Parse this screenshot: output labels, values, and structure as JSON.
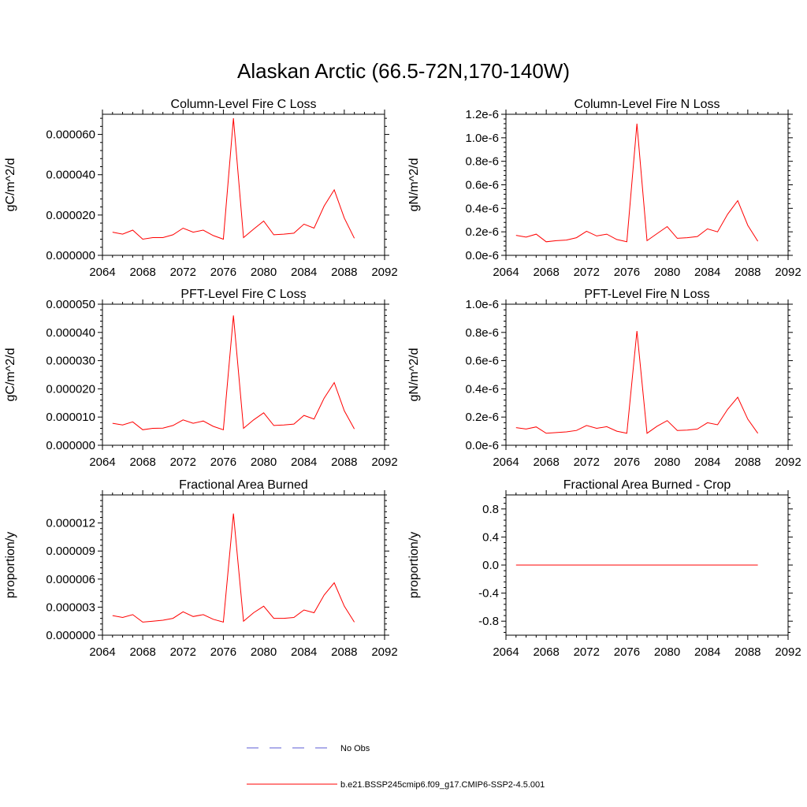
{
  "figure_title": "Alaskan Arctic (66.5-72N,170-140W)",
  "legend": {
    "placement": "bottom-center",
    "entries": [
      {
        "label": "No Obs",
        "color": "#5b5bd6",
        "style": "dashed"
      },
      {
        "label": "b.e21.BSSP245cmip6.f09_g17.CMIP6-SSP2-4.5.001",
        "color": "#ff0000",
        "style": "solid"
      }
    ]
  },
  "chart_data": [
    {
      "type": "line",
      "title": "Column-Level Fire C Loss",
      "xlabel": "",
      "ylabel": "gC/m^2/d",
      "xlim": [
        2064,
        2092
      ],
      "ylim": [
        0,
        7e-05
      ],
      "xticks": [
        "2064",
        "2068",
        "2072",
        "2076",
        "2080",
        "2084",
        "2088",
        "2092"
      ],
      "yticks": [
        {
          "v": 0,
          "t": "0.000000"
        },
        {
          "v": 2e-05,
          "t": "0.000020"
        },
        {
          "v": 4e-05,
          "t": "0.000040"
        },
        {
          "v": 6e-05,
          "t": "0.000060"
        }
      ],
      "grid": false,
      "series": [
        {
          "color": "#ff0000",
          "x": [
            2065,
            2066,
            2067,
            2068,
            2069,
            2070,
            2071,
            2072,
            2073,
            2074,
            2075,
            2076,
            2077,
            2078,
            2079,
            2080,
            2081,
            2082,
            2083,
            2084,
            2085,
            2086,
            2087,
            2088,
            2089
          ],
          "values": [
            1.15e-05,
            1.05e-05,
            1.25e-05,
            8e-06,
            8.8e-06,
            8.8e-06,
            1.02e-05,
            1.35e-05,
            1.15e-05,
            1.25e-05,
            9.8e-06,
            8e-06,
            6.8e-05,
            8.8e-06,
            1.3e-05,
            1.7e-05,
            1.02e-05,
            1.05e-05,
            1.1e-05,
            1.55e-05,
            1.35e-05,
            2.45e-05,
            3.25e-05,
            1.85e-05,
            8.5e-06
          ]
        }
      ]
    },
    {
      "type": "line",
      "title": "Column-Level Fire N Loss",
      "xlabel": "",
      "ylabel": "gN/m^2/d",
      "xlim": [
        2064,
        2092
      ],
      "ylim": [
        0,
        1.2e-06
      ],
      "xticks": [
        "2064",
        "2068",
        "2072",
        "2076",
        "2080",
        "2084",
        "2088",
        "2092"
      ],
      "yticks": [
        {
          "v": 0,
          "t": "0.0e-6"
        },
        {
          "v": 2e-07,
          "t": "0.2e-6"
        },
        {
          "v": 4e-07,
          "t": "0.4e-6"
        },
        {
          "v": 6e-07,
          "t": "0.6e-6"
        },
        {
          "v": 8e-07,
          "t": "0.8e-6"
        },
        {
          "v": 1e-06,
          "t": "1.0e-6"
        },
        {
          "v": 1.2e-06,
          "t": "1.2e-6"
        }
      ],
      "grid": false,
      "series": [
        {
          "color": "#ff0000",
          "x": [
            2065,
            2066,
            2067,
            2068,
            2069,
            2070,
            2071,
            2072,
            2073,
            2074,
            2075,
            2076,
            2077,
            2078,
            2079,
            2080,
            2081,
            2082,
            2083,
            2084,
            2085,
            2086,
            2087,
            2088,
            2089
          ],
          "values": [
            1.7e-07,
            1.55e-07,
            1.8e-07,
            1.15e-07,
            1.25e-07,
            1.3e-07,
            1.5e-07,
            2.05e-07,
            1.65e-07,
            1.8e-07,
            1.35e-07,
            1.15e-07,
            1.12e-06,
            1.25e-07,
            1.85e-07,
            2.45e-07,
            1.45e-07,
            1.5e-07,
            1.6e-07,
            2.25e-07,
            2e-07,
            3.5e-07,
            4.65e-07,
            2.55e-07,
            1.2e-07
          ]
        }
      ]
    },
    {
      "type": "line",
      "title": "PFT-Level Fire C Loss",
      "xlabel": "",
      "ylabel": "gC/m^2/d",
      "xlim": [
        2064,
        2092
      ],
      "ylim": [
        0,
        5e-05
      ],
      "xticks": [
        "2064",
        "2068",
        "2072",
        "2076",
        "2080",
        "2084",
        "2088",
        "2092"
      ],
      "yticks": [
        {
          "v": 0,
          "t": "0.000000"
        },
        {
          "v": 1e-05,
          "t": "0.000010"
        },
        {
          "v": 2e-05,
          "t": "0.000020"
        },
        {
          "v": 3e-05,
          "t": "0.000030"
        },
        {
          "v": 4e-05,
          "t": "0.000040"
        },
        {
          "v": 5e-05,
          "t": "0.000050"
        }
      ],
      "grid": false,
      "series": [
        {
          "color": "#ff0000",
          "x": [
            2065,
            2066,
            2067,
            2068,
            2069,
            2070,
            2071,
            2072,
            2073,
            2074,
            2075,
            2076,
            2077,
            2078,
            2079,
            2080,
            2081,
            2082,
            2083,
            2084,
            2085,
            2086,
            2087,
            2088,
            2089
          ],
          "values": [
            7.8e-06,
            7.2e-06,
            8.3e-06,
            5.5e-06,
            6e-06,
            6.1e-06,
            7e-06,
            9e-06,
            7.8e-06,
            8.6e-06,
            6.7e-06,
            5.5e-06,
            4.6e-05,
            6e-06,
            9e-06,
            1.15e-05,
            7e-06,
            7.2e-06,
            7.5e-06,
            1.06e-05,
            9.3e-06,
            1.67e-05,
            2.22e-05,
            1.22e-05,
            5.8e-06
          ]
        }
      ]
    },
    {
      "type": "line",
      "title": "PFT-Level Fire N Loss",
      "xlabel": "",
      "ylabel": "gN/m^2/d",
      "xlim": [
        2064,
        2092
      ],
      "ylim": [
        0,
        1e-06
      ],
      "xticks": [
        "2064",
        "2068",
        "2072",
        "2076",
        "2080",
        "2084",
        "2088",
        "2092"
      ],
      "yticks": [
        {
          "v": 0,
          "t": "0.0e-6"
        },
        {
          "v": 2e-07,
          "t": "0.2e-6"
        },
        {
          "v": 4e-07,
          "t": "0.4e-6"
        },
        {
          "v": 6e-07,
          "t": "0.6e-6"
        },
        {
          "v": 8e-07,
          "t": "0.8e-6"
        },
        {
          "v": 1e-06,
          "t": "1.0e-6"
        }
      ],
      "grid": false,
      "series": [
        {
          "color": "#ff0000",
          "x": [
            2065,
            2066,
            2067,
            2068,
            2069,
            2070,
            2071,
            2072,
            2073,
            2074,
            2075,
            2076,
            2077,
            2078,
            2079,
            2080,
            2081,
            2082,
            2083,
            2084,
            2085,
            2086,
            2087,
            2088,
            2089
          ],
          "values": [
            1.25e-07,
            1.15e-07,
            1.3e-07,
            8.5e-08,
            9e-08,
            9.5e-08,
            1.05e-07,
            1.4e-07,
            1.2e-07,
            1.32e-07,
            1e-07,
            8.5e-08,
            8.1e-07,
            8.5e-08,
            1.35e-07,
            1.75e-07,
            1.05e-07,
            1.08e-07,
            1.15e-07,
            1.6e-07,
            1.45e-07,
            2.55e-07,
            3.4e-07,
            1.85e-07,
            8.5e-08
          ]
        }
      ]
    },
    {
      "type": "line",
      "title": "Fractional Area Burned",
      "xlabel": "",
      "ylabel": "proportion/y",
      "xlim": [
        2064,
        2092
      ],
      "ylim": [
        0,
        1.5e-05
      ],
      "xticks": [
        "2064",
        "2068",
        "2072",
        "2076",
        "2080",
        "2084",
        "2088",
        "2092"
      ],
      "yticks": [
        {
          "v": 0,
          "t": "0.000000"
        },
        {
          "v": 3e-06,
          "t": "0.000003"
        },
        {
          "v": 6e-06,
          "t": "0.000006"
        },
        {
          "v": 9e-06,
          "t": "0.000009"
        },
        {
          "v": 1.2e-05,
          "t": "0.000012"
        }
      ],
      "grid": false,
      "series": [
        {
          "color": "#ff0000",
          "x": [
            2065,
            2066,
            2067,
            2068,
            2069,
            2070,
            2071,
            2072,
            2073,
            2074,
            2075,
            2076,
            2077,
            2078,
            2079,
            2080,
            2081,
            2082,
            2083,
            2084,
            2085,
            2086,
            2087,
            2088,
            2089
          ],
          "values": [
            2.1e-06,
            1.9e-06,
            2.2e-06,
            1.4e-06,
            1.5e-06,
            1.6e-06,
            1.8e-06,
            2.5e-06,
            2e-06,
            2.2e-06,
            1.7e-06,
            1.4e-06,
            1.3e-05,
            1.5e-06,
            2.4e-06,
            3.1e-06,
            1.8e-06,
            1.8e-06,
            1.9e-06,
            2.7e-06,
            2.4e-06,
            4.3e-06,
            5.6e-06,
            3.1e-06,
            1.4e-06
          ]
        }
      ]
    },
    {
      "type": "line",
      "title": "Fractional Area Burned - Crop",
      "xlabel": "",
      "ylabel": "proportion/y",
      "xlim": [
        2064,
        2092
      ],
      "ylim": [
        -1.0,
        1.0
      ],
      "xticks": [
        "2064",
        "2068",
        "2072",
        "2076",
        "2080",
        "2084",
        "2088",
        "2092"
      ],
      "yticks": [
        {
          "v": -0.8,
          "t": "-0.8"
        },
        {
          "v": -0.4,
          "t": "-0.4"
        },
        {
          "v": 0,
          "t": "0.0"
        },
        {
          "v": 0.4,
          "t": "0.4"
        },
        {
          "v": 0.8,
          "t": "0.8"
        }
      ],
      "grid": false,
      "series": [
        {
          "color": "#ff0000",
          "x": [
            2065,
            2066,
            2067,
            2068,
            2069,
            2070,
            2071,
            2072,
            2073,
            2074,
            2075,
            2076,
            2077,
            2078,
            2079,
            2080,
            2081,
            2082,
            2083,
            2084,
            2085,
            2086,
            2087,
            2088,
            2089
          ],
          "values": [
            0,
            0,
            0,
            0,
            0,
            0,
            0,
            0,
            0,
            0,
            0,
            0,
            0,
            0,
            0,
            0,
            0,
            0,
            0,
            0,
            0,
            0,
            0,
            0,
            0
          ]
        }
      ]
    }
  ]
}
